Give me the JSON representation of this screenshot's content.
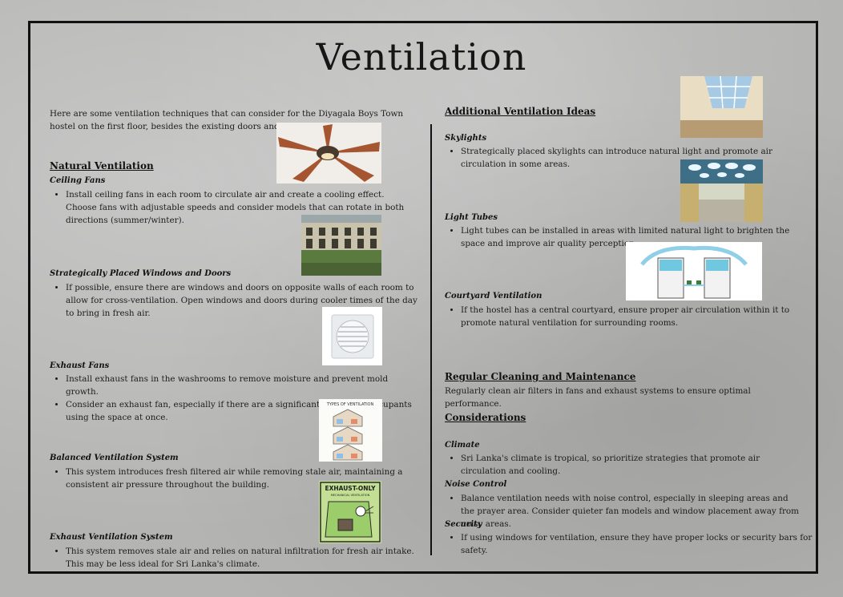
{
  "title": "Ventilation",
  "intro": "Here are some ventilation techniques that can consider for the Diyagala Boys Town hostel on the first floor, besides the existing doors and windows:",
  "natural_ventilation": {
    "heading": "Natural Ventilation",
    "ceiling_fans": {
      "title": "Ceiling Fans",
      "bullets": [
        "Install ceiling fans in each room to circulate air and create a cooling effect. Choose fans with adjustable speeds and consider models that can rotate in both directions (summer/winter)."
      ]
    },
    "windows_doors": {
      "title": "Strategically Placed Windows and Doors",
      "bullets": [
        "If possible, ensure there are windows and doors on opposite walls of each room to allow for cross-ventilation. Open windows and doors during cooler times of the day to bring in fresh air."
      ]
    },
    "exhaust_fans": {
      "title": "Exhaust Fans",
      "bullets": [
        "Install exhaust fans in the washrooms to remove moisture and prevent mold growth.",
        "Consider an exhaust fan, especially if there are a significant number of occupants using the space at once."
      ]
    },
    "balanced": {
      "title": "Balanced Ventilation System",
      "bullets": [
        "This system introduces fresh filtered air while removing stale air, maintaining a consistent air pressure throughout the building."
      ]
    },
    "exhaust_system": {
      "title": "Exhaust Ventilation System",
      "bullets": [
        "This system removes stale air and relies on natural infiltration for fresh air intake. This may be less ideal for Sri Lanka's climate."
      ]
    }
  },
  "additional": {
    "heading": "Additional Ventilation Ideas",
    "skylights": {
      "title": "Skylights",
      "bullets": [
        "Strategically placed skylights can introduce natural light and promote air circulation in some areas."
      ]
    },
    "light_tubes": {
      "title": "Light Tubes",
      "bullets": [
        "Light tubes can be installed in areas with limited natural light to brighten the space and improve air quality perception."
      ]
    },
    "courtyard": {
      "title": "Courtyard Ventilation",
      "bullets": [
        "If the hostel has a central courtyard, ensure proper air circulation within it to promote natural ventilation for surrounding rooms."
      ]
    }
  },
  "maintenance": {
    "heading": "Regular Cleaning and Maintenance",
    "text": "Regularly clean air filters in fans and exhaust systems to ensure optimal performance."
  },
  "considerations": {
    "heading": "Considerations",
    "climate": {
      "title": "Climate",
      "bullets": [
        "Sri Lanka's climate is tropical, so prioritize strategies that promote air circulation and cooling."
      ]
    },
    "noise": {
      "title": "Noise Control",
      "bullets": [
        "Balance ventilation needs with noise control, especially in sleeping areas and the prayer area. Consider quieter fan models and window placement away from noisy areas."
      ]
    },
    "security": {
      "title": "Security",
      "bullets": [
        "If using windows for ventilation, ensure they have proper locks or security bars for safety."
      ]
    }
  },
  "image_text": {
    "types_diagram": "TYPES OF VENTILATION",
    "exhaust_only_title": "EXHAUST-ONLY",
    "exhaust_only_sub": "MECHANICAL VENTILATION"
  }
}
